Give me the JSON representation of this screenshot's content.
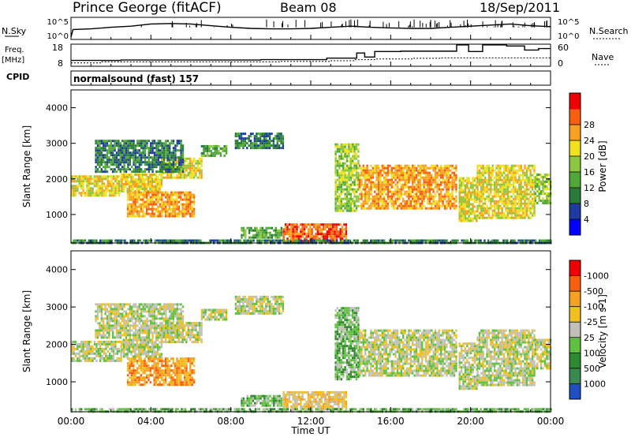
{
  "header": {
    "station": "Prince George (fitACF)",
    "beam": "Beam 08",
    "date": "18/Sep/2011"
  },
  "side_labels": {
    "nsky": "N.Sky",
    "freq_top": "Freq.",
    "freq_bot": "[MHz]",
    "cpid": "CPID",
    "nsearch": "N.Search",
    "nave": "Nave"
  },
  "cpid_text": "normalsound (fast) 157",
  "chart_data": [
    {
      "type": "line",
      "name": "noise",
      "ylabel": "N.Sky",
      "ytick_labels": [
        "10^5",
        "10^0"
      ],
      "right_label": "N.Search",
      "right_tick_labels": [
        "10^5",
        "10^0"
      ],
      "x_hours": [
        0,
        0.1,
        1,
        2,
        3,
        4,
        5,
        6,
        7,
        8,
        9,
        10,
        11,
        12,
        13,
        14,
        15,
        16,
        17,
        18,
        19,
        20,
        21,
        22,
        23,
        24
      ],
      "nsky_frac": [
        0.1,
        0.45,
        0.48,
        0.55,
        0.6,
        0.7,
        0.72,
        0.7,
        0.62,
        0.55,
        0.5,
        0.48,
        0.48,
        0.5,
        0.55,
        0.6,
        0.55,
        0.52,
        0.5,
        0.5,
        0.55,
        0.6,
        0.65,
        0.7,
        0.62,
        0.58
      ]
    },
    {
      "type": "line",
      "name": "frequency",
      "ylabel": "Freq. [MHz]",
      "ytick_labels": [
        "18",
        "8"
      ],
      "ylim": [
        8,
        18
      ],
      "right_label": "Nave",
      "right_tick_labels": [
        "60",
        "0"
      ],
      "freq_steps": [
        [
          0,
          9.5
        ],
        [
          1.5,
          10
        ],
        [
          10.5,
          10.2
        ],
        [
          13,
          10.5
        ],
        [
          14.2,
          11
        ],
        [
          15.2,
          11.3
        ],
        [
          17.1,
          11.6
        ],
        [
          18.5,
          11.8
        ],
        [
          22,
          11.8
        ]
      ],
      "nave_steps": [
        [
          0,
          16
        ],
        [
          2.5,
          17
        ],
        [
          9.5,
          18
        ],
        [
          12,
          18
        ],
        [
          12.8,
          22
        ],
        [
          14.3,
          36
        ],
        [
          14.7,
          25
        ],
        [
          15.2,
          40
        ],
        [
          16.5,
          41
        ],
        [
          19.3,
          58
        ],
        [
          19.9,
          40
        ],
        [
          20.6,
          58
        ],
        [
          21.8,
          55
        ],
        [
          22.7,
          44
        ],
        [
          23.4,
          48
        ]
      ]
    },
    {
      "type": "heatmap",
      "name": "power",
      "ylabel": "Slant Range [km]",
      "ylim": [
        200,
        4500
      ],
      "yticks": [
        1000,
        2000,
        3000,
        4000
      ],
      "colorbar_label": "Power [dB]",
      "colorbar_ticks": [
        "4",
        "8",
        "12",
        "16",
        "20",
        "24",
        "28"
      ],
      "colors": [
        "#0000ff",
        "#1e3ca0",
        "#2a7a3a",
        "#4fa838",
        "#8cc83c",
        "#f0e020",
        "#f8a020",
        "#f86010",
        "#f00000"
      ],
      "regions": [
        {
          "x0": 0,
          "x1": 2.5,
          "y0": 1550,
          "y1": 2100,
          "level": 5
        },
        {
          "x0": 2.5,
          "x1": 4.5,
          "y0": 1650,
          "y1": 2150,
          "level": 5
        },
        {
          "x0": 4.5,
          "x1": 6.5,
          "y0": 2050,
          "y1": 2600,
          "level": 5
        },
        {
          "x0": 6.5,
          "x1": 7.8,
          "y0": 2650,
          "y1": 2950,
          "level": 3
        },
        {
          "x0": 2.8,
          "x1": 6.2,
          "y0": 950,
          "y1": 1650,
          "level": 6
        },
        {
          "x0": 1.2,
          "x1": 5.6,
          "y0": 2200,
          "y1": 3100,
          "level": 2
        },
        {
          "x0": 8.2,
          "x1": 10.6,
          "y0": 2850,
          "y1": 3300,
          "level": 2
        },
        {
          "x0": 10.6,
          "x1": 13.8,
          "y0": 250,
          "y1": 750,
          "level": 7
        },
        {
          "x0": 8.5,
          "x1": 10.5,
          "y0": 350,
          "y1": 650,
          "level": 3
        },
        {
          "x0": 13.2,
          "x1": 14.4,
          "y0": 1100,
          "y1": 3000,
          "level": 4
        },
        {
          "x0": 14.4,
          "x1": 19.3,
          "y0": 1150,
          "y1": 2400,
          "level": 6
        },
        {
          "x0": 19.4,
          "x1": 20.3,
          "y0": 800,
          "y1": 2050,
          "level": 5
        },
        {
          "x0": 20.3,
          "x1": 23.2,
          "y0": 900,
          "y1": 2400,
          "level": 5
        },
        {
          "x0": 23.2,
          "x1": 24,
          "y0": 1350,
          "y1": 2150,
          "level": 4
        },
        {
          "x0": 0,
          "x1": 24,
          "y0": 200,
          "y1": 300,
          "level": 2
        }
      ]
    },
    {
      "type": "heatmap",
      "name": "velocity",
      "xlabel": "Time UT",
      "xtick_labels": [
        "00:00",
        "04:00",
        "08:00",
        "12:00",
        "16:00",
        "20:00",
        "00:00"
      ],
      "xlim": [
        0,
        24
      ],
      "ylabel": "Slant Range [km]",
      "ylim": [
        200,
        4500
      ],
      "yticks": [
        1000,
        2000,
        3000,
        4000
      ],
      "colorbar_label": "Velocity [m s-1]",
      "colorbar_ticks": [
        "1000",
        "500",
        "100",
        "25",
        "-25",
        "-100",
        "-500",
        "-1000"
      ],
      "colors": [
        "#2050c0",
        "#3a8a50",
        "#2e8a2e",
        "#60c040",
        "#c0c0b8",
        "#f0c020",
        "#f8a020",
        "#f86010",
        "#f00000"
      ],
      "regions": [
        {
          "x0": 0,
          "x1": 2.5,
          "y0": 1550,
          "y1": 2100,
          "level": 4
        },
        {
          "x0": 2.5,
          "x1": 4.5,
          "y0": 1650,
          "y1": 2150,
          "level": 4
        },
        {
          "x0": 4.5,
          "x1": 6.5,
          "y0": 2050,
          "y1": 2600,
          "level": 4
        },
        {
          "x0": 6.5,
          "x1": 7.8,
          "y0": 2650,
          "y1": 2950,
          "level": 4
        },
        {
          "x0": 2.8,
          "x1": 6.2,
          "y0": 950,
          "y1": 1650,
          "level": 6
        },
        {
          "x0": 1.2,
          "x1": 5.6,
          "y0": 2200,
          "y1": 3100,
          "level": 4
        },
        {
          "x0": 8.2,
          "x1": 10.6,
          "y0": 2850,
          "y1": 3300,
          "level": 4
        },
        {
          "x0": 10.6,
          "x1": 13.8,
          "y0": 250,
          "y1": 750,
          "level": 5
        },
        {
          "x0": 8.5,
          "x1": 10.5,
          "y0": 350,
          "y1": 650,
          "level": 3
        },
        {
          "x0": 13.2,
          "x1": 14.4,
          "y0": 1100,
          "y1": 3000,
          "level": 3
        },
        {
          "x0": 14.4,
          "x1": 19.3,
          "y0": 1150,
          "y1": 2400,
          "level": 4
        },
        {
          "x0": 19.4,
          "x1": 20.3,
          "y0": 800,
          "y1": 2050,
          "level": 4
        },
        {
          "x0": 20.3,
          "x1": 23.2,
          "y0": 900,
          "y1": 2400,
          "level": 4
        },
        {
          "x0": 23.2,
          "x1": 24,
          "y0": 1350,
          "y1": 2150,
          "level": 4
        },
        {
          "x0": 0,
          "x1": 24,
          "y0": 200,
          "y1": 300,
          "level": 3
        }
      ]
    }
  ]
}
